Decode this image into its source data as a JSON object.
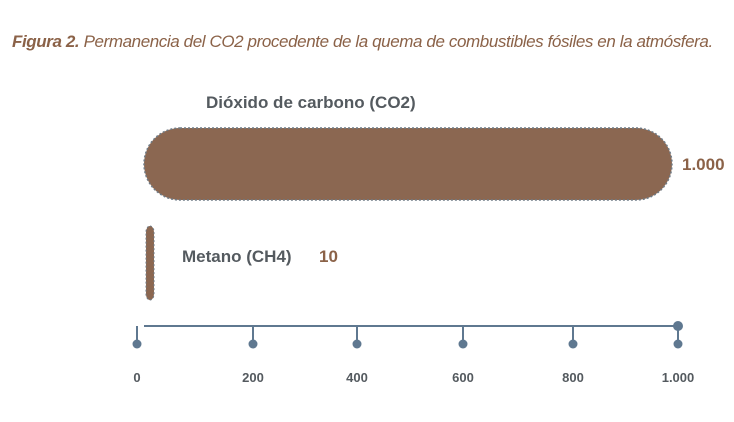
{
  "caption": {
    "prefix": "Figura 2.",
    "text": "Permanencia del CO2 procedente de la quema de combustibles fósiles en la atmósfera."
  },
  "colors": {
    "bar": "#8b6751",
    "bar_border": "#6f7b86",
    "axis": "#5f7890",
    "label": "#545a5f",
    "value": "#8b6248"
  },
  "chart_data": {
    "type": "bar",
    "orientation": "horizontal",
    "title": "",
    "xlabel": "",
    "ylabel": "",
    "xlim": [
      0,
      1000
    ],
    "grid": false,
    "categories": [
      "Dióxido de carbono (CO2)",
      "Metano (CH4)"
    ],
    "values": [
      1000,
      10
    ],
    "data_labels": [
      "1.000",
      "10"
    ],
    "tick_values": [
      0,
      200,
      400,
      600,
      800,
      1000
    ],
    "tick_labels": [
      "0",
      "200",
      "400",
      "600",
      "800",
      "1.000"
    ]
  }
}
